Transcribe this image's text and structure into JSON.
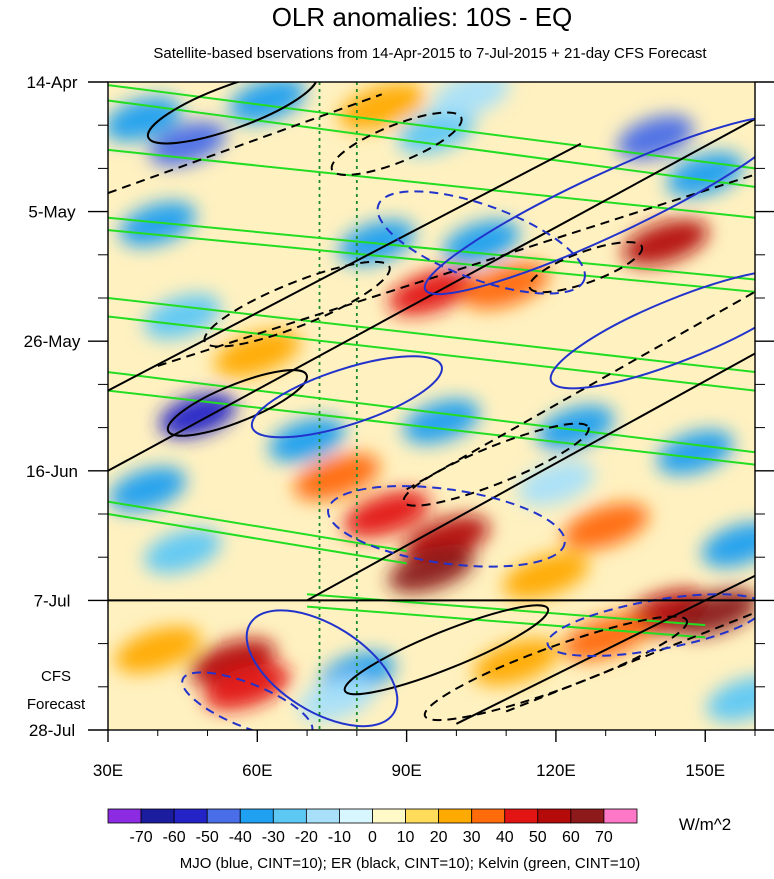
{
  "chart_data": {
    "type": "heatmap",
    "title": "OLR anomalies: 10S - EQ",
    "subtitle": "Satellite-based bservations from 14-Apr-2015 to 7-Jul-2015 + 21-day CFS Forecast",
    "xlabel": "",
    "ylabel": "",
    "x_range": [
      30,
      160
    ],
    "x_ticks": [
      {
        "value": 30,
        "label": "30E"
      },
      {
        "value": 60,
        "label": "60E"
      },
      {
        "value": 90,
        "label": "90E"
      },
      {
        "value": 120,
        "label": "120E"
      },
      {
        "value": 150,
        "label": "150E"
      }
    ],
    "y_range": [
      "14-Apr",
      "28-Jul"
    ],
    "y_ticks": [
      {
        "day": 0,
        "label": "14-Apr"
      },
      {
        "day": 21,
        "label": "5-May"
      },
      {
        "day": 42,
        "label": "26-May"
      },
      {
        "day": 63,
        "label": "16-Jun"
      },
      {
        "day": 84,
        "label": "7-Jul"
      },
      {
        "day": 105,
        "label": "28-Jul"
      }
    ],
    "forecast_start_day": 84,
    "forecast_label_lines": [
      "CFS",
      "Forecast"
    ],
    "reference_lines_lon": [
      72.5,
      80
    ],
    "colorbar": {
      "levels": [
        "-70",
        "-60",
        "-50",
        "-40",
        "-30",
        "-20",
        "-10",
        "0",
        "10",
        "20",
        "30",
        "40",
        "50",
        "60",
        "70"
      ],
      "colors": [
        "#8c2be2",
        "#1c1c9e",
        "#2323c8",
        "#4a6ee8",
        "#1fa0f0",
        "#5ec8f5",
        "#a8e0fa",
        "#d8f6ff",
        "#fffac8",
        "#ffdc5a",
        "#ffaa00",
        "#ff6a0a",
        "#e31414",
        "#b40a0a",
        "#8c1a1a",
        "#ff78c8"
      ],
      "units": "W/m^2"
    },
    "caption": "MJO (blue, CINT=10); ER (black, CINT=10); Kelvin (green, CINT=10)",
    "anomaly_features": [
      {
        "lon": 37,
        "day": 6,
        "value": -40
      },
      {
        "lon": 46,
        "day": 10,
        "value": -50
      },
      {
        "lon": 62,
        "day": 3,
        "value": -40
      },
      {
        "lon": 85,
        "day": 4,
        "value": 20
      },
      {
        "lon": 96,
        "day": 8,
        "value": -30
      },
      {
        "lon": 140,
        "day": 9,
        "value": -50
      },
      {
        "lon": 150,
        "day": 15,
        "value": -40
      },
      {
        "lon": 103,
        "day": 2,
        "value": -20
      },
      {
        "lon": 40,
        "day": 23,
        "value": -40
      },
      {
        "lon": 84,
        "day": 26,
        "value": -40
      },
      {
        "lon": 105,
        "day": 26,
        "value": -40
      },
      {
        "lon": 95,
        "day": 34,
        "value": 40
      },
      {
        "lon": 110,
        "day": 33,
        "value": 30
      },
      {
        "lon": 142,
        "day": 26,
        "value": 50
      },
      {
        "lon": 45,
        "day": 38,
        "value": -30
      },
      {
        "lon": 60,
        "day": 44,
        "value": 20
      },
      {
        "lon": 48,
        "day": 54,
        "value": -60
      },
      {
        "lon": 70,
        "day": 58,
        "value": -40
      },
      {
        "lon": 97,
        "day": 55,
        "value": -40
      },
      {
        "lon": 124,
        "day": 56,
        "value": -40
      },
      {
        "lon": 148,
        "day": 60,
        "value": -40
      },
      {
        "lon": 76,
        "day": 64,
        "value": 30
      },
      {
        "lon": 120,
        "day": 65,
        "value": -20
      },
      {
        "lon": 38,
        "day": 66,
        "value": -40
      },
      {
        "lon": 98,
        "day": 74,
        "value": 50
      },
      {
        "lon": 95,
        "day": 79,
        "value": 60
      },
      {
        "lon": 86,
        "day": 70,
        "value": 40
      },
      {
        "lon": 130,
        "day": 72,
        "value": 30
      },
      {
        "lon": 45,
        "day": 76,
        "value": -30
      },
      {
        "lon": 157,
        "day": 75,
        "value": -40
      },
      {
        "lon": 118,
        "day": 80,
        "value": 20
      },
      {
        "lon": 142,
        "day": 86,
        "value": 50
      },
      {
        "lon": 152,
        "day": 86,
        "value": 60
      },
      {
        "lon": 130,
        "day": 90,
        "value": 30
      },
      {
        "lon": 55,
        "day": 94,
        "value": 50
      },
      {
        "lon": 58,
        "day": 98,
        "value": 40
      },
      {
        "lon": 80,
        "day": 96,
        "value": -40
      },
      {
        "lon": 76,
        "day": 100,
        "value": -20
      },
      {
        "lon": 112,
        "day": 94,
        "value": 20
      },
      {
        "lon": 158,
        "day": 100,
        "value": -30
      },
      {
        "lon": 40,
        "day": 92,
        "value": 20
      }
    ],
    "contours": {
      "mjo_blue": [
        {
          "lon": 78,
          "day": 51,
          "rx": 20,
          "ry": 4.5,
          "rot": -18,
          "dashed": false
        },
        {
          "lon": 73,
          "day": 95,
          "rx": 17,
          "ry": 7,
          "rot": 32,
          "dashed": false
        },
        {
          "lon": 105,
          "day": 26,
          "rx": 22,
          "ry": 6,
          "rot": 20,
          "dashed": true
        },
        {
          "lon": 98,
          "day": 72,
          "rx": 24,
          "ry": 6,
          "rot": 8,
          "dashed": true
        },
        {
          "lon": 130,
          "day": 20,
          "rx": 40,
          "ry": 5,
          "rot": -25,
          "dashed": false
        },
        {
          "lon": 145,
          "day": 40,
          "rx": 28,
          "ry": 5,
          "rot": -22,
          "dashed": false
        },
        {
          "lon": 58,
          "day": 101,
          "rx": 14,
          "ry": 3.5,
          "rot": 22,
          "dashed": true
        },
        {
          "lon": 140,
          "day": 88,
          "rx": 22,
          "ry": 4,
          "rot": -10,
          "dashed": true
        }
      ],
      "er_black": [
        {
          "lon": 55,
          "day": 4,
          "rx": 18,
          "ry": 3.5,
          "rot": -20,
          "dashed": false
        },
        {
          "lon": 88,
          "day": 10,
          "rx": 14,
          "ry": 3,
          "rot": -22,
          "dashed": true
        },
        {
          "lon": 68,
          "day": 36,
          "rx": 20,
          "ry": 3.5,
          "rot": -22,
          "dashed": true
        },
        {
          "lon": 56,
          "day": 52,
          "rx": 15,
          "ry": 3,
          "rot": -22,
          "dashed": false
        },
        {
          "lon": 126,
          "day": 30,
          "rx": 12,
          "ry": 2.5,
          "rot": -20,
          "dashed": true
        },
        {
          "lon": 108,
          "day": 62,
          "rx": 20,
          "ry": 3,
          "rot": -22,
          "dashed": true
        },
        {
          "lon": 120,
          "day": 95,
          "rx": 28,
          "ry": 3.5,
          "rot": -20,
          "dashed": true
        },
        {
          "lon": 98,
          "day": 92,
          "rx": 22,
          "ry": 3,
          "rot": -22,
          "dashed": false
        }
      ],
      "er_lines": [
        {
          "lon0": 30,
          "day0": 63,
          "lon1": 160,
          "day1": 6,
          "dashed": false
        },
        {
          "lon0": 30,
          "day0": 50,
          "lon1": 125,
          "day1": 10,
          "dashed": false
        },
        {
          "lon0": 70,
          "day0": 84,
          "lon1": 160,
          "day1": 44,
          "dashed": false
        },
        {
          "lon0": 100,
          "day0": 104,
          "lon1": 160,
          "day1": 80,
          "dashed": false
        },
        {
          "lon0": 40,
          "day0": 46,
          "lon1": 160,
          "day1": 15,
          "dashed": true
        },
        {
          "lon0": 90,
          "day0": 66,
          "lon1": 160,
          "day1": 34,
          "dashed": true
        },
        {
          "lon0": 110,
          "day0": 102,
          "lon1": 160,
          "day1": 86,
          "dashed": true
        },
        {
          "lon0": 30,
          "day0": 18,
          "lon1": 85,
          "day1": 2,
          "dashed": true
        }
      ],
      "kelvin_green": [
        {
          "lon0": 30,
          "day0": 0.5,
          "lon1": 160,
          "day1": 14
        },
        {
          "lon0": 30,
          "day0": 3,
          "lon1": 160,
          "day1": 17
        },
        {
          "lon0": 30,
          "day0": 11,
          "lon1": 160,
          "day1": 22
        },
        {
          "lon0": 30,
          "day0": 22,
          "lon1": 160,
          "day1": 32
        },
        {
          "lon0": 30,
          "day0": 24,
          "lon1": 160,
          "day1": 34
        },
        {
          "lon0": 30,
          "day0": 35,
          "lon1": 160,
          "day1": 47
        },
        {
          "lon0": 30,
          "day0": 38,
          "lon1": 160,
          "day1": 50
        },
        {
          "lon0": 30,
          "day0": 47,
          "lon1": 160,
          "day1": 60
        },
        {
          "lon0": 30,
          "day0": 50,
          "lon1": 160,
          "day1": 62
        },
        {
          "lon0": 30,
          "day0": 68,
          "lon1": 90,
          "day1": 76
        },
        {
          "lon0": 30,
          "day0": 70,
          "lon1": 90,
          "day1": 78
        },
        {
          "lon0": 70,
          "day0": 83,
          "lon1": 150,
          "day1": 88
        },
        {
          "lon0": 70,
          "day0": 85,
          "lon1": 150,
          "day1": 90
        }
      ]
    }
  }
}
